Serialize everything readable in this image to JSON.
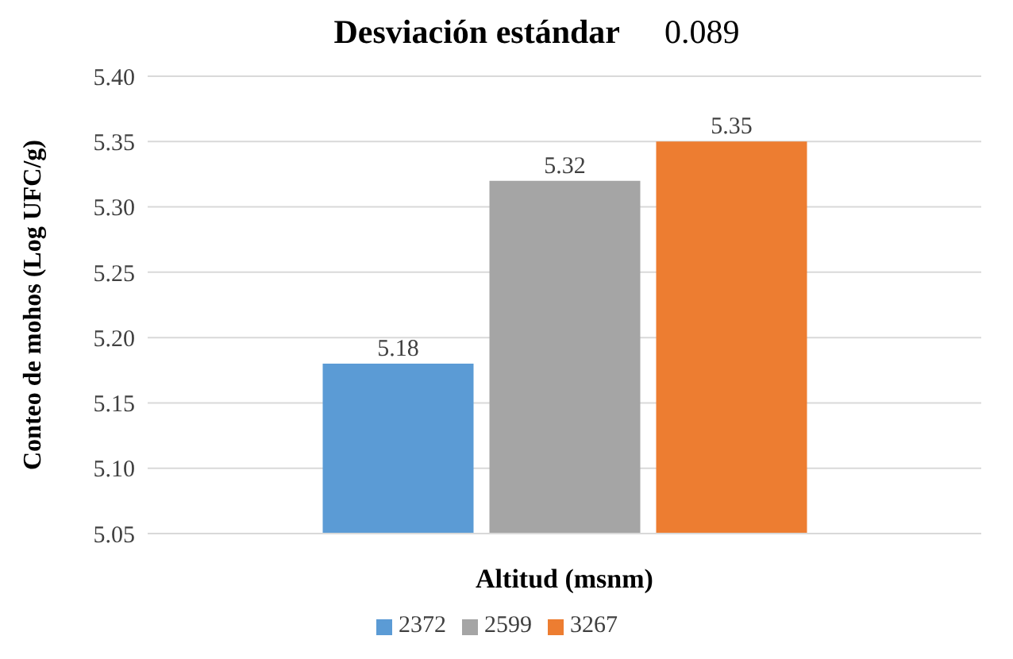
{
  "chart_data": {
    "type": "bar",
    "title": "Desviación estándar",
    "annotations": [
      "0.089"
    ],
    "xlabel": "Altitud (msnm)",
    "ylabel": "Conteo de mohos (Log UFC/g)",
    "categories": [
      null
    ],
    "series": [
      {
        "name": "2372",
        "color": "#5b9bd5",
        "values": [
          5.18
        ]
      },
      {
        "name": "2599",
        "color": "#a5a5a5",
        "values": [
          5.32
        ]
      },
      {
        "name": "3267",
        "color": "#ed7d31",
        "values": [
          5.35
        ]
      }
    ],
    "ylim": [
      5.05,
      5.4
    ],
    "yticks": [
      {
        "value": 5.05,
        "label": "5.05"
      },
      {
        "value": 5.1,
        "label": "5.10"
      },
      {
        "value": 5.15,
        "label": "5.15"
      },
      {
        "value": 5.2,
        "label": "5.20"
      },
      {
        "value": 5.25,
        "label": "5.25"
      },
      {
        "value": 5.3,
        "label": "5.30"
      },
      {
        "value": 5.35,
        "label": "5.35"
      },
      {
        "value": 5.4,
        "label": "5.40"
      }
    ],
    "grid": "y",
    "legend": "bottom",
    "data_labels": true
  }
}
